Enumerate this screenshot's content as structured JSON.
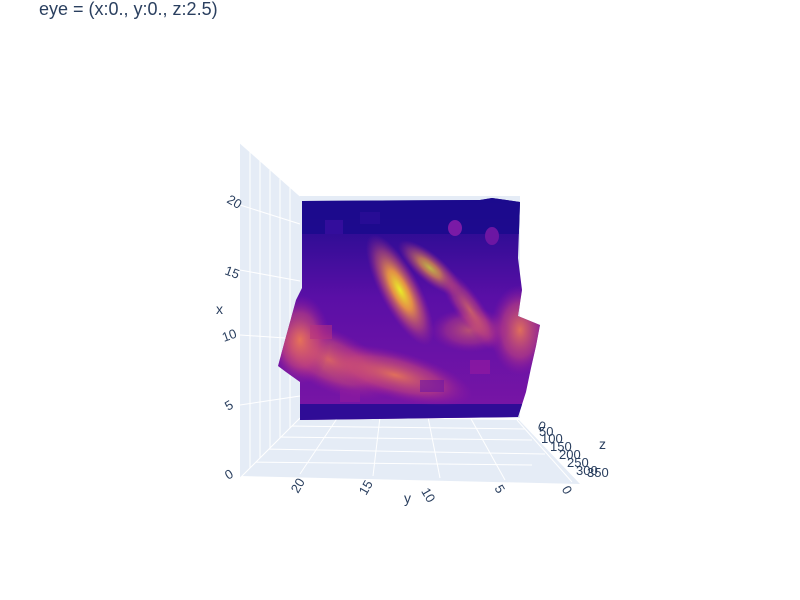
{
  "title": "eye = (x:0., y:0., z:2.5)",
  "chart_data": {
    "type": "surface",
    "colorscale": "plasma",
    "colors": {
      "low": "#0d0887",
      "mid": "#9c179e",
      "high": "#ed7953",
      "top": "#f0f921"
    },
    "axes": {
      "x": {
        "title": "x",
        "ticks": [
          "0",
          "5",
          "10",
          "15",
          "20"
        ]
      },
      "y": {
        "title": "y",
        "ticks": [
          "20",
          "15",
          "10",
          "5",
          "0"
        ]
      },
      "z": {
        "title": "z",
        "ticks": [
          "0",
          "50",
          "100",
          "150",
          "200",
          "250",
          "300",
          "350"
        ]
      }
    },
    "camera_eye": {
      "x": 0.0,
      "y": 0.0,
      "z": 2.5
    }
  }
}
